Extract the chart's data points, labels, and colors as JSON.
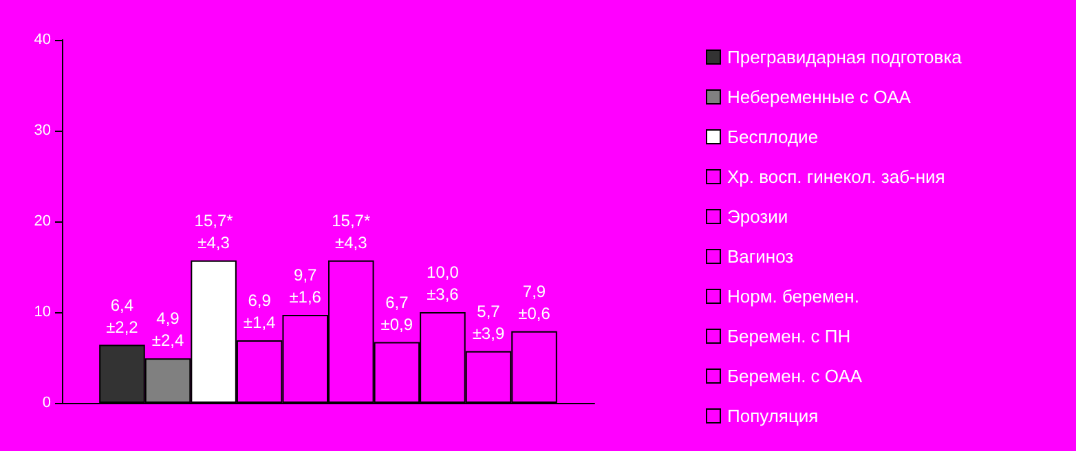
{
  "chart_data": {
    "type": "bar",
    "categories": [
      null
    ],
    "ylim": [
      0,
      40
    ],
    "yticks": [
      0,
      10,
      20,
      30,
      40
    ],
    "grid": false,
    "legend": "right",
    "series": [
      {
        "name": "Прегравидарная подготовка",
        "color": "#333333",
        "values": [
          6.4
        ],
        "value_labels": [
          "6,4\n±2,2"
        ]
      },
      {
        "name": "Небеременные с ОАА",
        "color": "#808080",
        "values": [
          4.9
        ],
        "value_labels": [
          "4,9\n±2,4"
        ]
      },
      {
        "name": "Бесплодие",
        "color": "#ffffff",
        "values": [
          15.7
        ],
        "value_labels": [
          "15,7*\n±4,3"
        ]
      },
      {
        "name": "Хр. восп. гинекол. заб-ния",
        "color": "#ff00ff",
        "values": [
          6.9
        ],
        "value_labels": [
          "6,9\n±1,4"
        ]
      },
      {
        "name": "Эрозии",
        "color": "#ff00ff",
        "values": [
          9.7
        ],
        "value_labels": [
          "9,7\n±1,6"
        ]
      },
      {
        "name": "Вагиноз",
        "color": "#ff00ff",
        "values": [
          15.7
        ],
        "value_labels": [
          "15,7*\n±4,3"
        ]
      },
      {
        "name": "Норм. беремен.",
        "color": "#ff00ff",
        "values": [
          6.7
        ],
        "value_labels": [
          "6,7\n±0,9"
        ]
      },
      {
        "name": "Беремен. с ПН",
        "color": "#ff00ff",
        "values": [
          10.0
        ],
        "value_labels": [
          "10,0\n±3,6"
        ]
      },
      {
        "name": "Беремен. с ОАА",
        "color": "#ff00ff",
        "values": [
          5.7
        ],
        "value_labels": [
          "5,7\n±3,9"
        ]
      },
      {
        "name": "Популяция",
        "color": "#ff00ff",
        "values": [
          7.9
        ],
        "value_labels": [
          "7,9\n±0,6"
        ]
      }
    ]
  }
}
